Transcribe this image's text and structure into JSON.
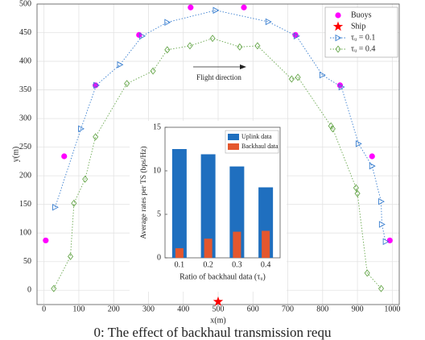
{
  "chart_data": [
    {
      "type": "line",
      "xlabel": "x(m)",
      "ylabel": "y(m)",
      "xlim": [
        -20,
        1020
      ],
      "xticks": [
        0,
        100,
        200,
        300,
        400,
        500,
        600,
        700,
        800,
        900,
        1000
      ],
      "ylim": [
        -25,
        500
      ],
      "yticks": [
        0,
        50,
        100,
        150,
        200,
        250,
        300,
        350,
        400,
        450,
        500
      ],
      "grid": true,
      "legend": "upper right",
      "annotation": "Flight direction",
      "series": [
        {
          "name": "Buoys",
          "color": "#ff00ff",
          "marker": "circle",
          "linestyle": "none",
          "x": [
            5,
            58,
            148,
            273,
            421,
            574,
            722,
            850,
            942,
            993
          ],
          "values": [
            87,
            234,
            358,
            446,
            494,
            494,
            446,
            358,
            234,
            87
          ]
        },
        {
          "name": "Ship",
          "color": "#ff0000",
          "marker": "star",
          "linestyle": "none",
          "x": [
            500
          ],
          "values": [
            -20
          ]
        },
        {
          "name": "τᵤ = 0.1",
          "color": "#3a7fd0",
          "marker": "triangle",
          "linestyle": "dotted",
          "x": [
            32,
            106,
            150,
            218,
            282,
            354,
            493,
            644,
            725,
            799,
            854,
            903,
            942,
            968,
            970,
            981
          ],
          "values": [
            145,
            282,
            358,
            394,
            444,
            468,
            489,
            469,
            444,
            376,
            355,
            256,
            217,
            155,
            115,
            85
          ]
        },
        {
          "name": "τᵤ = 0.4",
          "color": "#6aa84f",
          "marker": "diamond",
          "linestyle": "dotted",
          "x": [
            28,
            76,
            86,
            118,
            148,
            238,
            313,
            354,
            419,
            484,
            562,
            613,
            711,
            729,
            824,
            829,
            896,
            900,
            928,
            968
          ],
          "values": [
            3,
            59,
            152,
            194,
            268,
            361,
            383,
            420,
            427,
            440,
            425,
            427,
            369,
            372,
            287,
            282,
            179,
            169,
            30,
            3
          ]
        }
      ]
    },
    {
      "type": "bar",
      "xlabel": "Ratio of backhaul data (τᵤ)",
      "ylabel": "Average rates per TS (bps/Hz)",
      "categories": [
        "0.1",
        "0.2",
        "0.3",
        "0.4"
      ],
      "ylim": [
        0,
        15
      ],
      "yticks": [
        0,
        5,
        10,
        15
      ],
      "legend": "upper right",
      "series": [
        {
          "name": "Uplink data",
          "color": "#1f6fbf",
          "values": [
            12.5,
            11.9,
            10.5,
            8.1
          ]
        },
        {
          "name": "Backhaul data",
          "color": "#e4572e",
          "values": [
            1.1,
            2.2,
            3.0,
            3.1
          ]
        }
      ]
    }
  ],
  "caption": "0:  The  effect  of  backhaul  transmission  requ"
}
